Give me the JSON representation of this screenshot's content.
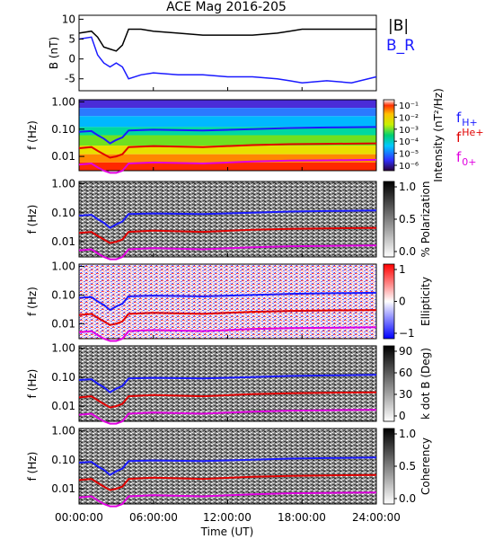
{
  "title": "ACE Mag 2016-205",
  "xlabel": "Time (UT)",
  "time_ticks": [
    "00:00:00",
    "06:00:00",
    "12:00:00",
    "18:00:00",
    "24:00:00"
  ],
  "chart_data": [
    {
      "type": "line",
      "panel": "magnetic-field",
      "ylabel": "B (nT)",
      "ylim": [
        -8,
        11
      ],
      "yticks": [
        "10",
        "5",
        "0",
        "-5"
      ],
      "x_hours": [
        0,
        1,
        1.5,
        2,
        2.5,
        3,
        3.5,
        4,
        5,
        6,
        8,
        10,
        12,
        14,
        16,
        17,
        18,
        20,
        22,
        24
      ],
      "series": [
        {
          "name": "|B|",
          "color": "#000000",
          "values": [
            6.5,
            7,
            5.5,
            3,
            2.5,
            2,
            3.5,
            7.5,
            7.5,
            7,
            6.5,
            6,
            6,
            6,
            6.5,
            7,
            7.5,
            7.5,
            7.5,
            7.5
          ]
        },
        {
          "name": "B_R",
          "color": "#1a1aff",
          "values": [
            5,
            5.5,
            1,
            -1,
            -2,
            -1,
            -2,
            -5,
            -4,
            -3.5,
            -4,
            -4,
            -4.5,
            -4.5,
            -5,
            -5.5,
            -6,
            -5.5,
            -6,
            -4.5
          ]
        }
      ]
    },
    {
      "type": "heatmap",
      "panel": "intensity",
      "ylabel": "f (Hz)",
      "yticks": [
        "1.00",
        "0.10",
        "0.01"
      ],
      "colorbar_label": "Intensity (nT²/Hz)",
      "colorbar_ticks": [
        "10⁻¹",
        "10⁻²",
        "10⁻³",
        "10⁻⁴",
        "10⁻⁵",
        "10⁻⁶"
      ],
      "overlay_legend": [
        {
          "base": "f",
          "sub": "H+",
          "sup": "",
          "color": "#1a1aff"
        },
        {
          "base": "f",
          "sub": "",
          "sup": "He+",
          "color": "#e00000"
        },
        {
          "base": "f",
          "sub": "0+",
          "sup": "",
          "color": "#e000e0"
        }
      ]
    },
    {
      "type": "heatmap",
      "panel": "polarization",
      "ylabel": "f (Hz)",
      "yticks": [
        "1.00",
        "0.10",
        "0.01"
      ],
      "colorbar_label": "% Polarization",
      "colorbar_ticks": [
        "1.0",
        "0.5",
        "0.0"
      ]
    },
    {
      "type": "heatmap",
      "panel": "ellipticity",
      "ylabel": "f (Hz)",
      "yticks": [
        "1.00",
        "0.10",
        "0.01"
      ],
      "colorbar_label": "Ellipticity",
      "colorbar_ticks": [
        "1",
        "0",
        "−1"
      ]
    },
    {
      "type": "heatmap",
      "panel": "k-dot-b",
      "ylabel": "f (Hz)",
      "yticks": [
        "1.00",
        "0.10",
        "0.01"
      ],
      "colorbar_label": "k dot B (Deg)",
      "colorbar_ticks": [
        "90",
        "60",
        "30",
        "0"
      ]
    },
    {
      "type": "heatmap",
      "panel": "coherency",
      "ylabel": "f (Hz)",
      "yticks": [
        "1.00",
        "0.10",
        "0.01"
      ],
      "colorbar_label": "Coherency",
      "colorbar_ticks": [
        "1.0",
        "0.5",
        "0.0"
      ]
    }
  ],
  "gyrofrequency_lines": {
    "x_hours": [
      0,
      1,
      1.5,
      2,
      2.5,
      3,
      3.5,
      4,
      6,
      10,
      14,
      17,
      20,
      24
    ],
    "H+": [
      0.08,
      0.085,
      0.06,
      0.045,
      0.03,
      0.04,
      0.05,
      0.09,
      0.095,
      0.09,
      0.1,
      0.11,
      0.115,
      0.12
    ],
    "He+": [
      0.02,
      0.022,
      0.016,
      0.012,
      0.009,
      0.01,
      0.012,
      0.022,
      0.024,
      0.022,
      0.026,
      0.028,
      0.029,
      0.03
    ],
    "O+": [
      0.005,
      0.0055,
      0.004,
      0.003,
      0.0025,
      0.0025,
      0.003,
      0.0055,
      0.006,
      0.0055,
      0.0065,
      0.007,
      0.0072,
      0.0075
    ]
  }
}
